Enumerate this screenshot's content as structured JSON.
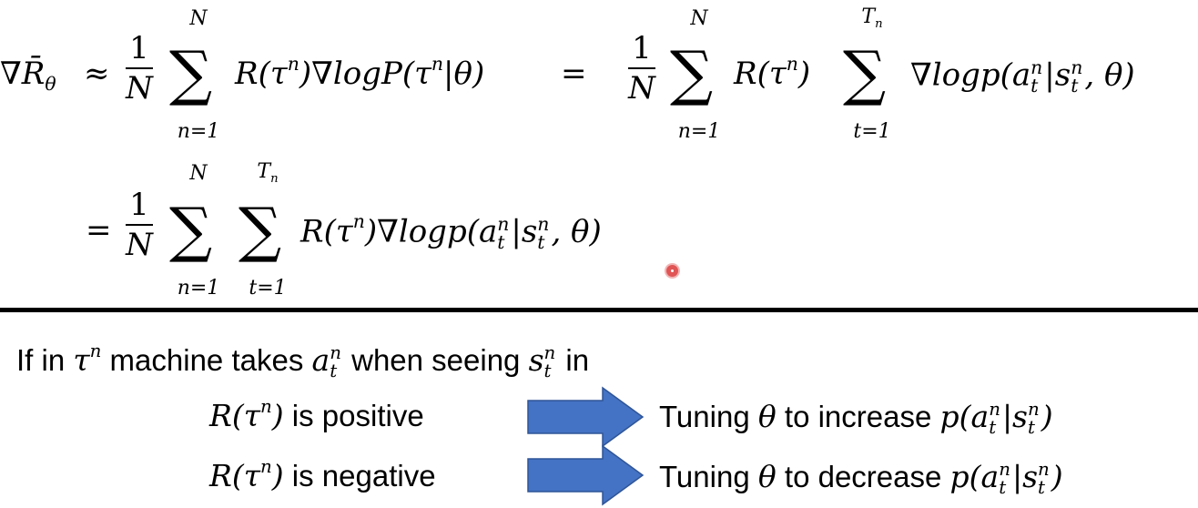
{
  "equation": {
    "lhs": "∇R̄",
    "lhs_sub": "θ",
    "approx": "≈",
    "equals": "=",
    "frac_num": "1",
    "frac_den": "N",
    "sum_symbol": "∑",
    "sum_n_upper": "N",
    "sum_n_lower": "n=1",
    "sum_t_upper": "T",
    "sum_t_upper_sub": "n",
    "sum_t_lower": "t=1",
    "term1": "R(τ",
    "term1_sup": "n",
    "term1_close": ")∇logP(τ",
    "term1_sup2": "n",
    "term1_end": "|θ)",
    "reward": "R(τ",
    "reward_sup": "n",
    "reward_close": ")",
    "grad_log": "∇logp(a",
    "a_sup": "n",
    "a_sub": "t",
    "bar": "|s",
    "s_sup": "n",
    "s_sub": "t",
    "tail": ", θ)"
  },
  "explanation": {
    "line1_a": "If in ",
    "tau": "τ",
    "tau_sup": "n",
    "line1_b": " machine takes ",
    "a": "a",
    "a_sup": "n",
    "a_sub": "t",
    "line1_c": " when seeing ",
    "s": "s",
    "s_sup": "n",
    "s_sub": "t",
    "line1_d": " in",
    "r_open": "R(τ",
    "r_sup": "n",
    "r_close": ")",
    "positive_text": " is positive",
    "negative_text": " is negative",
    "tuning_a": "Tuning ",
    "theta": "θ",
    "increase_text": " to increase ",
    "decrease_text": " to decrease ",
    "p_open": "p(a",
    "p_bar": "|s",
    "p_close": ")"
  },
  "colors": {
    "arrow": "#4472c4",
    "arrow_stroke": "#2f5597",
    "divider": "#000000",
    "cursor_dot": "#e05555"
  }
}
